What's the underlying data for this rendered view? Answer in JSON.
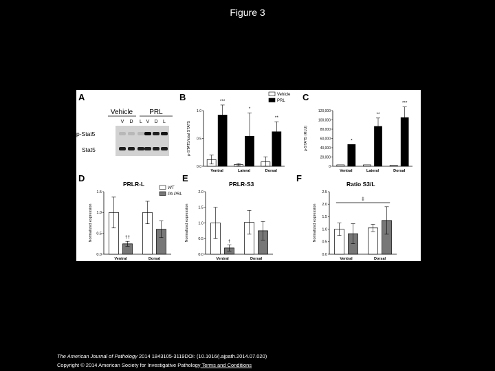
{
  "page": {
    "title": "Figure 3"
  },
  "footer": {
    "journal": "The American Journal of Pathology",
    "citation": " 2014 1843105-3119DOI: (10.1016/j.ajpath.2014.07.020)",
    "copyright": "Copyright © 2014 American Society for Investigative Pathology",
    "terms_link": " Terms and Conditions"
  },
  "panels": {
    "A": {
      "letter": "A",
      "groups": [
        "Vehicle",
        "PRL"
      ],
      "lanes": [
        "V",
        "D",
        "L",
        "V",
        "D",
        "L"
      ],
      "rows": [
        "p-Stat5",
        "Stat5"
      ]
    }
  },
  "chart_data": [
    {
      "id": "B",
      "type": "bar",
      "letter": "B",
      "ylabel": "p-STAT5/total STAT5",
      "yticks": [
        "0.0",
        "0.5",
        "1.0"
      ],
      "ylim": [
        0,
        1.0
      ],
      "categories": [
        "Ventral",
        "Lateral",
        "Dorsal"
      ],
      "legend": [
        "Vehicle",
        "PRL"
      ],
      "legend_position": "top-right",
      "series": [
        {
          "name": "Vehicle",
          "values": [
            0.12,
            0.03,
            0.08
          ],
          "errors": [
            0.08,
            0.02,
            0.09
          ]
        },
        {
          "name": "PRL",
          "values": [
            0.92,
            0.54,
            0.62
          ],
          "errors": [
            0.18,
            0.42,
            0.18
          ]
        }
      ],
      "annotations": [
        "***",
        "*",
        "**"
      ]
    },
    {
      "id": "C",
      "type": "bar",
      "letter": "C",
      "ylabel": "p-STAT5 (RLU)",
      "yticks": [
        "0",
        "20,000",
        "40,000",
        "60,000",
        "80,000",
        "100,000",
        "120,000"
      ],
      "ylim": [
        0,
        120000
      ],
      "categories": [
        "Ventral",
        "Lateral",
        "Dorsal"
      ],
      "series": [
        {
          "name": "Vehicle",
          "values": [
            3000,
            3000,
            2000
          ],
          "errors": [
            0,
            0,
            0
          ]
        },
        {
          "name": "PRL",
          "values": [
            47000,
            86000,
            105000
          ],
          "errors": [
            0,
            18000,
            23000
          ]
        }
      ],
      "annotations": [
        "*",
        "**",
        "***"
      ]
    },
    {
      "id": "D",
      "type": "bar",
      "letter": "D",
      "title": "PRLR-L",
      "ylabel": "Normalized expression",
      "yticks": [
        "0.0",
        "0.5",
        "1.0",
        "1.5"
      ],
      "ylim": [
        0,
        1.5
      ],
      "categories": [
        "Ventral",
        "Dorsal"
      ],
      "legend": [
        "WT",
        "Pb PRL"
      ],
      "legend_position": "top-right",
      "series": [
        {
          "name": "WT",
          "values": [
            1.0,
            1.0
          ],
          "errors": [
            0.37,
            0.27
          ]
        },
        {
          "name": "Pb PRL",
          "values": [
            0.25,
            0.6
          ],
          "errors": [
            0.06,
            0.2
          ]
        }
      ],
      "annotations": [
        "††",
        ""
      ]
    },
    {
      "id": "E",
      "type": "bar",
      "letter": "E",
      "title": "PRLR-S3",
      "ylabel": "Normalized expression",
      "yticks": [
        "0.0",
        "0.5",
        "1.0",
        "1.5",
        "2.0"
      ],
      "ylim": [
        0,
        2.0
      ],
      "categories": [
        "Ventral",
        "Dorsal"
      ],
      "series": [
        {
          "name": "WT",
          "values": [
            1.0,
            1.02
          ],
          "errors": [
            0.5,
            0.38
          ]
        },
        {
          "name": "Pb PRL",
          "values": [
            0.2,
            0.75
          ],
          "errors": [
            0.1,
            0.3
          ]
        }
      ],
      "annotations": [
        "†",
        ""
      ]
    },
    {
      "id": "F",
      "type": "bar",
      "letter": "F",
      "title": "Ratio S3/L",
      "ylabel": "Normalized expression",
      "yticks": [
        "0.0",
        "0.5",
        "1.0",
        "1.5",
        "2.0",
        "2.5"
      ],
      "ylim": [
        0,
        2.5
      ],
      "categories": [
        "Ventral",
        "Dorsal"
      ],
      "series": [
        {
          "name": "WT",
          "values": [
            1.0,
            1.05
          ],
          "errors": [
            0.25,
            0.15
          ]
        },
        {
          "name": "Pb PRL",
          "values": [
            0.82,
            1.35
          ],
          "errors": [
            0.4,
            0.55
          ]
        }
      ],
      "annotations": [
        "",
        ""
      ],
      "bracket_label": "‡"
    }
  ]
}
